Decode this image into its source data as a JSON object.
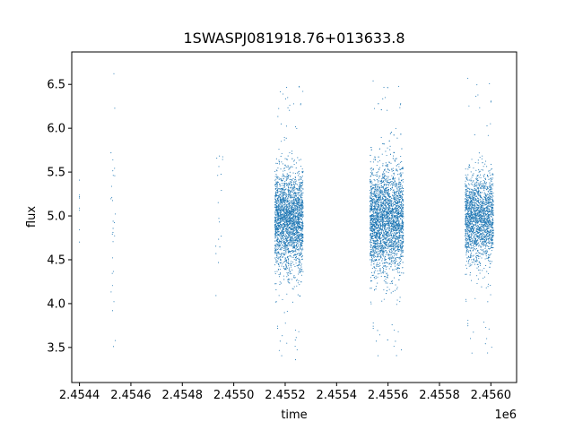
{
  "chart_data": {
    "type": "scatter",
    "title": "1SWASPJ081918.76+013633.8",
    "xlabel": "time",
    "ylabel": "flux",
    "x_offset_label": "1e6",
    "xlim": [
      2.45437,
      2.4561
    ],
    "ylim": [
      3.1,
      6.87
    ],
    "x_ticks": [
      2.4544,
      2.4546,
      2.4548,
      2.455,
      2.4552,
      2.4554,
      2.4556,
      2.4558,
      2.456
    ],
    "x_tick_labels": [
      "2.4544",
      "2.4546",
      "2.4548",
      "2.4550",
      "2.4552",
      "2.4554",
      "2.4556",
      "2.4558",
      "2.4560"
    ],
    "y_ticks": [
      3.5,
      4.0,
      4.5,
      5.0,
      5.5,
      6.0,
      6.5
    ],
    "y_tick_labels": [
      "3.5",
      "4.0",
      "4.5",
      "5.0",
      "5.5",
      "6.0",
      "6.5"
    ],
    "grid": false,
    "marker_color": "#1f77b4",
    "segments": [
      {
        "x_start": 2.4544,
        "x_end": 2.4544,
        "center": 5.1,
        "spread": 0.25,
        "count": 8
      },
      {
        "x_start": 2.45452,
        "x_end": 2.45454,
        "center": 5.0,
        "spread": 0.8,
        "count": 30
      },
      {
        "x_start": 2.45493,
        "x_end": 2.45496,
        "center": 5.0,
        "spread": 0.45,
        "count": 18
      },
      {
        "x_start": 2.45516,
        "x_end": 2.45527,
        "center": 4.95,
        "spread": 0.28,
        "count": 2500
      },
      {
        "x_start": 2.45553,
        "x_end": 2.45566,
        "center": 4.95,
        "spread": 0.3,
        "count": 3200
      },
      {
        "x_start": 2.4559,
        "x_end": 2.45601,
        "center": 4.98,
        "spread": 0.25,
        "count": 2000
      }
    ]
  }
}
